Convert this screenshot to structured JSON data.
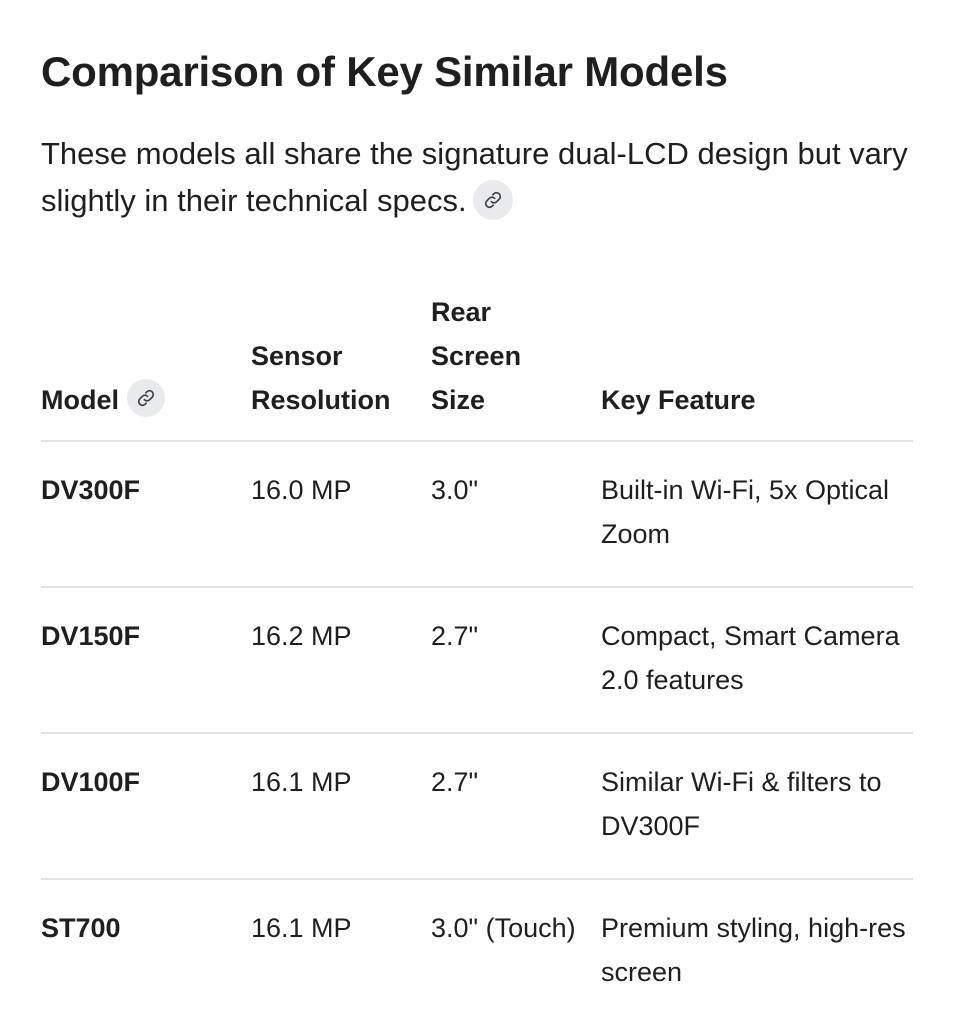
{
  "title": "Comparison of Key Similar Models",
  "intro": "These models all share the signature dual-LCD design but vary slightly in their technical specs.",
  "icons": {
    "citation": "link-icon"
  },
  "table": {
    "headers": {
      "model": "Model",
      "sensor": [
        "Sensor",
        "Resolution"
      ],
      "screen": [
        "Rear",
        "Screen",
        "Size"
      ],
      "feature": "Key Feature"
    },
    "rows": [
      {
        "model": "DV300F",
        "sensor": "16.0 MP",
        "screen": "3.0\"",
        "feature": "Built-in Wi-Fi, 5x Optical Zoom"
      },
      {
        "model": "DV150F",
        "sensor": "16.2 MP",
        "screen": "2.7\"",
        "feature": "Compact, Smart Camera 2.0 features"
      },
      {
        "model": "DV100F",
        "sensor": "16.1 MP",
        "screen": "2.7\"",
        "feature": "Similar Wi-Fi & filters to DV300F"
      },
      {
        "model": "ST700",
        "sensor": "16.1 MP",
        "screen": "3.0\" (Touch)",
        "feature": "Premium styling, high-res screen"
      }
    ]
  }
}
